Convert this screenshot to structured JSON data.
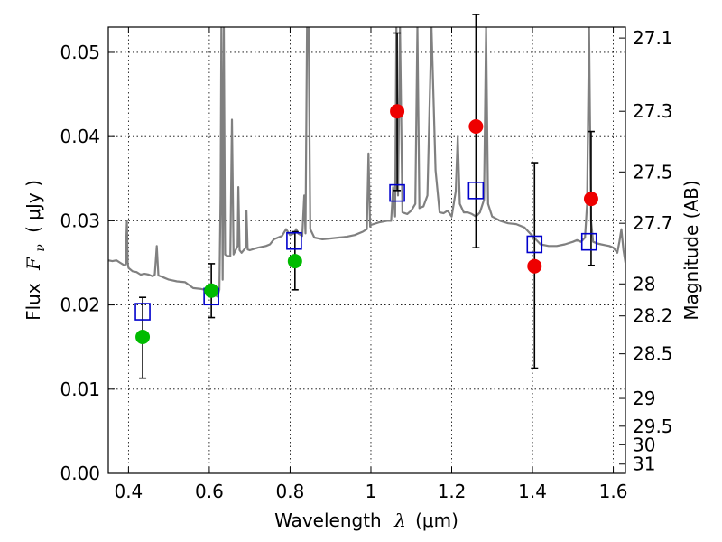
{
  "chart_data": {
    "type": "scatter",
    "xlabel_text": "Wavelength",
    "xlabel_symbol": "λ",
    "xlabel_unit": "(μm)",
    "ylabel_text": "Flux",
    "ylabel_symbol": "F",
    "ylabel_subscript": "ν",
    "ylabel_unit": "( μJy )",
    "y2label": "Magnitude (AB)",
    "xlim": [
      0.35,
      1.63
    ],
    "ylim": [
      0.0,
      0.053
    ],
    "grid": true,
    "x_ticks": [
      0.4,
      0.6,
      0.8,
      1.0,
      1.2,
      1.4,
      1.6
    ],
    "x_tick_labels": [
      "0.4",
      "0.6",
      "0.8",
      "1",
      "1.2",
      "1.4",
      "1.6"
    ],
    "y_ticks": [
      0.0,
      0.01,
      0.02,
      0.03,
      0.04,
      0.05
    ],
    "y_tick_labels": [
      "0.00",
      "0.01",
      "0.02",
      "0.03",
      "0.04",
      "0.05"
    ],
    "y2_ticks": [
      {
        "label": "27.1",
        "flux": 0.0517
      },
      {
        "label": "27.3",
        "flux": 0.043
      },
      {
        "label": "27.5",
        "flux": 0.0358
      },
      {
        "label": "27.7",
        "flux": 0.0297
      },
      {
        "label": "28",
        "flux": 0.0225
      },
      {
        "label": "28.2",
        "flux": 0.0187
      },
      {
        "label": "28.5",
        "flux": 0.0142
      },
      {
        "label": "29",
        "flux": 0.0089
      },
      {
        "label": "29.5",
        "flux": 0.0056
      },
      {
        "label": "30",
        "flux": 0.0034
      },
      {
        "label": "31",
        "flux": 0.0011
      }
    ],
    "series": [
      {
        "kind": "spectrum",
        "color": "#808080",
        "points": [
          [
            0.35,
            0.0253
          ],
          [
            0.36,
            0.0252
          ],
          [
            0.37,
            0.0253
          ],
          [
            0.38,
            0.025
          ],
          [
            0.39,
            0.0247
          ],
          [
            0.393,
            0.0248
          ],
          [
            0.396,
            0.03
          ],
          [
            0.398,
            0.0249
          ],
          [
            0.4,
            0.0244
          ],
          [
            0.41,
            0.024
          ],
          [
            0.42,
            0.0239
          ],
          [
            0.43,
            0.0236
          ],
          [
            0.44,
            0.0237
          ],
          [
            0.45,
            0.0236
          ],
          [
            0.46,
            0.0234
          ],
          [
            0.465,
            0.0236
          ],
          [
            0.47,
            0.027
          ],
          [
            0.474,
            0.0235
          ],
          [
            0.48,
            0.0234
          ],
          [
            0.49,
            0.0232
          ],
          [
            0.5,
            0.023
          ],
          [
            0.52,
            0.0228
          ],
          [
            0.54,
            0.0227
          ],
          [
            0.56,
            0.022
          ],
          [
            0.58,
            0.0219
          ],
          [
            0.6,
            0.0217
          ],
          [
            0.61,
            0.0213
          ],
          [
            0.62,
            0.021
          ],
          [
            0.625,
            0.0218
          ],
          [
            0.628,
            0.033
          ],
          [
            0.63,
            0.053
          ],
          [
            0.633,
            0.023
          ],
          [
            0.636,
            0.053
          ],
          [
            0.639,
            0.026
          ],
          [
            0.645,
            0.0258
          ],
          [
            0.652,
            0.0258
          ],
          [
            0.656,
            0.042
          ],
          [
            0.66,
            0.026
          ],
          [
            0.67,
            0.027
          ],
          [
            0.672,
            0.034
          ],
          [
            0.675,
            0.0265
          ],
          [
            0.68,
            0.0262
          ],
          [
            0.69,
            0.0268
          ],
          [
            0.692,
            0.0312
          ],
          [
            0.695,
            0.0266
          ],
          [
            0.7,
            0.0265
          ],
          [
            0.72,
            0.0268
          ],
          [
            0.74,
            0.027
          ],
          [
            0.75,
            0.0272
          ],
          [
            0.76,
            0.0278
          ],
          [
            0.78,
            0.0282
          ],
          [
            0.79,
            0.029
          ],
          [
            0.8,
            0.0283
          ],
          [
            0.81,
            0.0285
          ],
          [
            0.815,
            0.029
          ],
          [
            0.82,
            0.0285
          ],
          [
            0.83,
            0.0282
          ],
          [
            0.835,
            0.033
          ],
          [
            0.838,
            0.0285
          ],
          [
            0.842,
            0.053
          ],
          [
            0.846,
            0.053
          ],
          [
            0.85,
            0.029
          ],
          [
            0.86,
            0.028
          ],
          [
            0.88,
            0.0278
          ],
          [
            0.9,
            0.0279
          ],
          [
            0.92,
            0.028
          ],
          [
            0.94,
            0.0281
          ],
          [
            0.96,
            0.0283
          ],
          [
            0.98,
            0.0287
          ],
          [
            0.99,
            0.029
          ],
          [
            0.994,
            0.038
          ],
          [
            0.998,
            0.0293
          ],
          [
            1.0,
            0.0295
          ],
          [
            1.02,
            0.0298
          ],
          [
            1.04,
            0.03
          ],
          [
            1.05,
            0.03
          ],
          [
            1.055,
            0.034
          ],
          [
            1.06,
            0.0305
          ],
          [
            1.063,
            0.053
          ],
          [
            1.067,
            0.033
          ],
          [
            1.072,
            0.053
          ],
          [
            1.078,
            0.031
          ],
          [
            1.09,
            0.0308
          ],
          [
            1.1,
            0.0312
          ],
          [
            1.11,
            0.032
          ],
          [
            1.115,
            0.053
          ],
          [
            1.12,
            0.0315
          ],
          [
            1.13,
            0.0317
          ],
          [
            1.14,
            0.033
          ],
          [
            1.15,
            0.053
          ],
          [
            1.16,
            0.036
          ],
          [
            1.17,
            0.031
          ],
          [
            1.18,
            0.0309
          ],
          [
            1.19,
            0.0312
          ],
          [
            1.2,
            0.0305
          ],
          [
            1.21,
            0.0335
          ],
          [
            1.215,
            0.04
          ],
          [
            1.22,
            0.032
          ],
          [
            1.23,
            0.031
          ],
          [
            1.24,
            0.031
          ],
          [
            1.25,
            0.0308
          ],
          [
            1.26,
            0.0305
          ],
          [
            1.27,
            0.031
          ],
          [
            1.28,
            0.0325
          ],
          [
            1.285,
            0.053
          ],
          [
            1.29,
            0.032
          ],
          [
            1.3,
            0.0305
          ],
          [
            1.32,
            0.03
          ],
          [
            1.34,
            0.0297
          ],
          [
            1.36,
            0.0296
          ],
          [
            1.38,
            0.0292
          ],
          [
            1.4,
            0.0282
          ],
          [
            1.42,
            0.0272
          ],
          [
            1.44,
            0.027
          ],
          [
            1.46,
            0.027
          ],
          [
            1.48,
            0.0272
          ],
          [
            1.5,
            0.0275
          ],
          [
            1.51,
            0.0277
          ],
          [
            1.52,
            0.0275
          ],
          [
            1.53,
            0.028
          ],
          [
            1.535,
            0.032
          ],
          [
            1.54,
            0.053
          ],
          [
            1.545,
            0.03
          ],
          [
            1.55,
            0.0275
          ],
          [
            1.56,
            0.0273
          ],
          [
            1.57,
            0.0272
          ],
          [
            1.58,
            0.0271
          ],
          [
            1.59,
            0.027
          ],
          [
            1.6,
            0.0268
          ],
          [
            1.61,
            0.0262
          ],
          [
            1.615,
            0.0275
          ],
          [
            1.62,
            0.029
          ],
          [
            1.625,
            0.0265
          ],
          [
            1.63,
            0.025
          ]
        ]
      },
      {
        "kind": "model",
        "marker": "open-square",
        "color": "#0000cc",
        "points": [
          {
            "x": 0.435,
            "y": 0.0192
          },
          {
            "x": 0.605,
            "y": 0.021
          },
          {
            "x": 0.81,
            "y": 0.0276
          },
          {
            "x": 1.065,
            "y": 0.0333
          },
          {
            "x": 1.26,
            "y": 0.0336
          },
          {
            "x": 1.405,
            "y": 0.0272
          },
          {
            "x": 1.54,
            "y": 0.0275
          }
        ]
      },
      {
        "kind": "observed",
        "marker": "filled-circle",
        "points": [
          {
            "x": 0.435,
            "y": 0.0162,
            "err_low": 0.0113,
            "err_high": 0.0209,
            "color": "#00bb00"
          },
          {
            "x": 0.605,
            "y": 0.0217,
            "err_low": 0.0185,
            "err_high": 0.0249,
            "color": "#00bb00"
          },
          {
            "x": 0.812,
            "y": 0.0252,
            "err_low": 0.0218,
            "err_high": 0.0287,
            "color": "#00bb00"
          },
          {
            "x": 1.065,
            "y": 0.043,
            "err_low": 0.0336,
            "err_high": 0.0523,
            "color": "#ee0000"
          },
          {
            "x": 1.26,
            "y": 0.0412,
            "err_low": 0.0268,
            "err_high": 0.0545,
            "color": "#ee0000"
          },
          {
            "x": 1.405,
            "y": 0.0246,
            "err_low": 0.0125,
            "err_high": 0.0369,
            "color": "#ee0000"
          },
          {
            "x": 1.545,
            "y": 0.0326,
            "err_low": 0.0247,
            "err_high": 0.0406,
            "color": "#ee0000"
          }
        ]
      }
    ]
  }
}
